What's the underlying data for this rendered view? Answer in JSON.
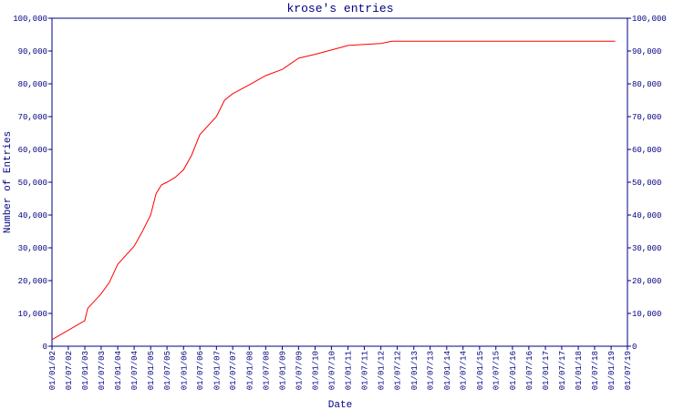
{
  "chart_data": {
    "type": "line",
    "title": "krose's entries",
    "x_label": "Date",
    "y_label": "Number of Entries",
    "x": [
      "2002-01-01",
      "2003-01-01",
      "2003-02-01",
      "2003-07-01",
      "2003-10-01",
      "2004-01-01",
      "2004-07-01",
      "2004-10-01",
      "2005-01-01",
      "2005-03-01",
      "2005-05-01",
      "2005-07-01",
      "2005-10-01",
      "2006-01-01",
      "2006-04-01",
      "2006-07-01",
      "2007-01-01",
      "2007-04-01",
      "2007-07-01",
      "2008-01-01",
      "2008-07-01",
      "2009-01-01",
      "2009-07-01",
      "2010-01-01",
      "2010-07-01",
      "2011-01-01",
      "2011-07-01",
      "2012-01-01",
      "2012-05-01",
      "2019-02-15"
    ],
    "series": [
      {
        "name": "krose's entries",
        "color": "#ff0000",
        "values": [
          2000,
          7800,
          11500,
          16000,
          19500,
          25000,
          30500,
          35000,
          40000,
          46500,
          49200,
          50000,
          51500,
          53800,
          58300,
          64500,
          70000,
          75000,
          77000,
          79700,
          82500,
          84400,
          87800,
          89000,
          90300,
          91700,
          92000,
          92300,
          93000,
          93000
        ]
      }
    ],
    "xlim": [
      "2002-01-01",
      "2019-07-01"
    ],
    "xticks": [
      {
        "value": "2002-01-01",
        "label": "01/01/02"
      },
      {
        "value": "2002-07-01",
        "label": "01/07/02"
      },
      {
        "value": "2003-01-01",
        "label": "01/01/03"
      },
      {
        "value": "2003-07-01",
        "label": "01/07/03"
      },
      {
        "value": "2004-01-01",
        "label": "01/01/04"
      },
      {
        "value": "2004-07-01",
        "label": "01/07/04"
      },
      {
        "value": "2005-01-01",
        "label": "01/01/05"
      },
      {
        "value": "2005-07-01",
        "label": "01/07/05"
      },
      {
        "value": "2006-01-01",
        "label": "01/01/06"
      },
      {
        "value": "2006-07-01",
        "label": "01/07/06"
      },
      {
        "value": "2007-01-01",
        "label": "01/01/07"
      },
      {
        "value": "2007-07-01",
        "label": "01/07/07"
      },
      {
        "value": "2008-01-01",
        "label": "01/01/08"
      },
      {
        "value": "2008-07-01",
        "label": "01/07/08"
      },
      {
        "value": "2009-01-01",
        "label": "01/01/09"
      },
      {
        "value": "2009-07-01",
        "label": "01/07/09"
      },
      {
        "value": "2010-01-01",
        "label": "01/01/10"
      },
      {
        "value": "2010-07-01",
        "label": "01/07/10"
      },
      {
        "value": "2011-01-01",
        "label": "01/01/11"
      },
      {
        "value": "2011-07-01",
        "label": "01/07/11"
      },
      {
        "value": "2012-01-01",
        "label": "01/01/12"
      },
      {
        "value": "2012-07-01",
        "label": "01/07/12"
      },
      {
        "value": "2013-01-01",
        "label": "01/01/13"
      },
      {
        "value": "2013-07-01",
        "label": "01/07/13"
      },
      {
        "value": "2014-01-01",
        "label": "01/01/14"
      },
      {
        "value": "2014-07-01",
        "label": "01/07/14"
      },
      {
        "value": "2015-01-01",
        "label": "01/01/15"
      },
      {
        "value": "2015-07-01",
        "label": "01/07/15"
      },
      {
        "value": "2016-01-01",
        "label": "01/01/16"
      },
      {
        "value": "2016-07-01",
        "label": "01/07/16"
      },
      {
        "value": "2017-01-01",
        "label": "01/01/17"
      },
      {
        "value": "2017-07-01",
        "label": "01/07/17"
      },
      {
        "value": "2018-01-01",
        "label": "01/01/18"
      },
      {
        "value": "2018-07-01",
        "label": "01/07/18"
      },
      {
        "value": "2019-01-01",
        "label": "01/01/19"
      },
      {
        "value": "2019-07-01",
        "label": "01/07/19"
      }
    ],
    "ylim": [
      0,
      100000
    ],
    "yticks": [
      0,
      {
        "value": 10000,
        "label": "10,000"
      },
      {
        "value": 20000,
        "label": "20,000"
      },
      {
        "value": 30000,
        "label": "30,000"
      },
      {
        "value": 40000,
        "label": "40,000"
      },
      {
        "value": 50000,
        "label": "50,000"
      },
      {
        "value": 60000,
        "label": "60,000"
      },
      {
        "value": 70000,
        "label": "70,000"
      },
      {
        "value": 80000,
        "label": "80,000"
      },
      {
        "value": 90000,
        "label": "90,000"
      },
      {
        "value": 100000,
        "label": "100,000"
      }
    ],
    "axis_color": "#000080"
  }
}
